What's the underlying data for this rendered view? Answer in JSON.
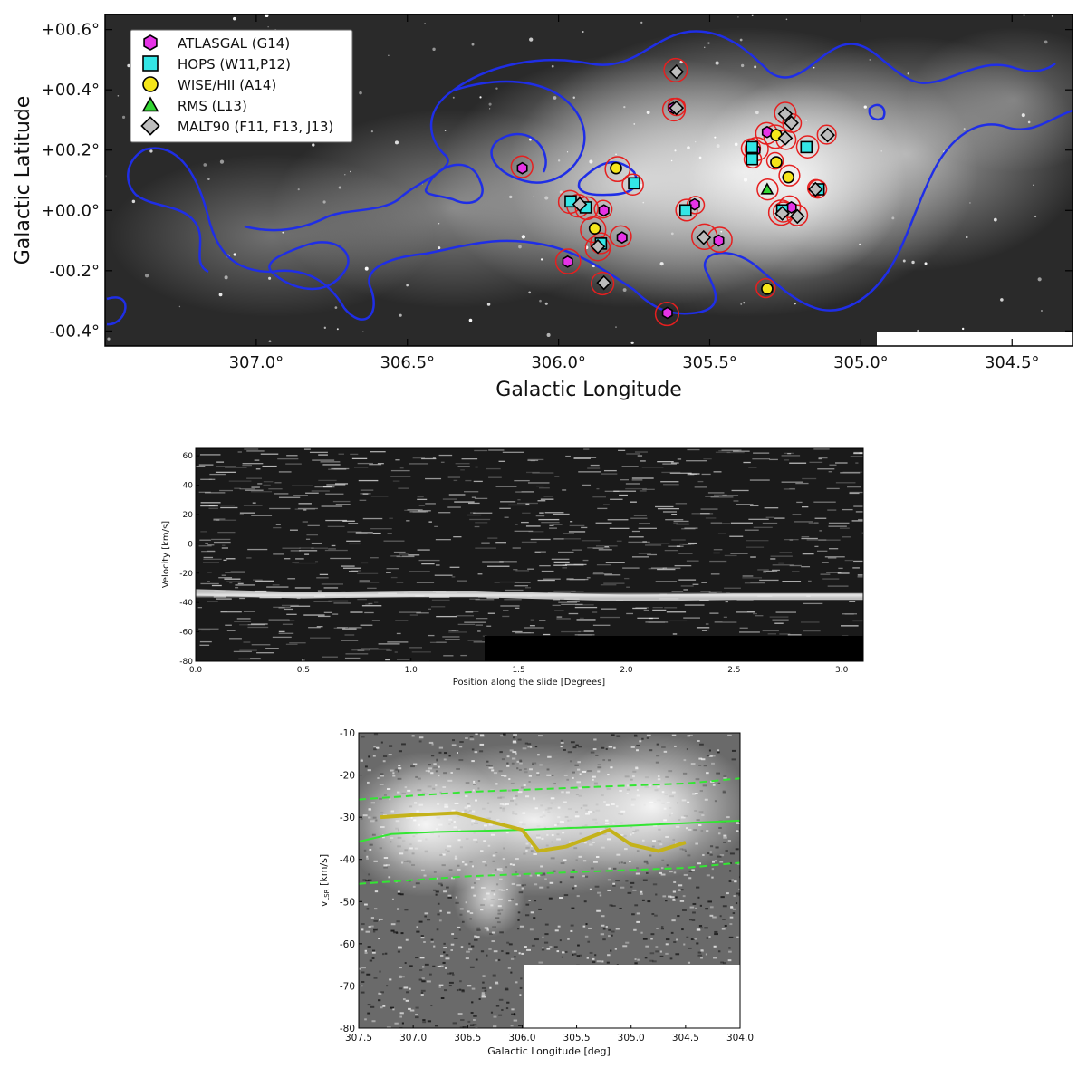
{
  "colors": {
    "atlasgal": "#e633e6",
    "hops": "#33e6e6",
    "wise": "#f5e61a",
    "rms": "#33d633",
    "malt90": "#bdbdbd",
    "contour_blue": "#1f2ee6",
    "contour_red": "#e61f1f",
    "lsr_fit": "#33e633",
    "velocity_track": "#c4b21a"
  },
  "chart_data": [
    {
      "type": "scatter",
      "xlabel": "Galactic Longitude",
      "ylabel": "Galactic Latitude",
      "xlim": [
        307.5,
        304.3
      ],
      "ylim": [
        -0.45,
        0.65
      ],
      "xticks": [
        {
          "v": 307.0,
          "label": "307.0°"
        },
        {
          "v": 306.5,
          "label": "306.5°"
        },
        {
          "v": 306.0,
          "label": "306.0°"
        },
        {
          "v": 305.5,
          "label": "305.5°"
        },
        {
          "v": 305.0,
          "label": "305.0°"
        },
        {
          "v": 304.5,
          "label": "304.5°"
        }
      ],
      "yticks": [
        {
          "v": 0.6,
          "label": "+00.6°"
        },
        {
          "v": 0.4,
          "label": "+00.4°"
        },
        {
          "v": 0.2,
          "label": "+00.2°"
        },
        {
          "v": 0.0,
          "label": "+00.0°"
        },
        {
          "v": -0.2,
          "label": "-00.2°"
        },
        {
          "v": -0.4,
          "label": "-00.4°"
        }
      ],
      "legend_position": "top-left",
      "series": [
        {
          "name": "ATLASGAL (G14)",
          "marker": "hexagon",
          "color": "#e633e6",
          "points": [
            [
              306.12,
              0.14
            ],
            [
              305.97,
              -0.17
            ],
            [
              305.79,
              -0.09
            ],
            [
              305.64,
              -0.34
            ],
            [
              305.55,
              0.02
            ],
            [
              305.47,
              -0.1
            ],
            [
              305.62,
              0.34
            ],
            [
              305.35,
              0.2
            ],
            [
              305.23,
              0.01
            ],
            [
              305.31,
              0.26
            ],
            [
              305.85,
              0.0
            ]
          ]
        },
        {
          "name": "HOPS (W11,P12)",
          "marker": "square",
          "color": "#33e6e6",
          "points": [
            [
              305.96,
              0.03
            ],
            [
              305.91,
              0.01
            ],
            [
              305.75,
              0.09
            ],
            [
              305.58,
              0.0
            ],
            [
              305.36,
              0.21
            ],
            [
              305.36,
              0.17
            ],
            [
              305.26,
              0.0
            ],
            [
              305.18,
              0.21
            ],
            [
              305.14,
              0.07
            ],
            [
              305.86,
              -0.11
            ]
          ]
        },
        {
          "name": "WISE/HII (A14)",
          "marker": "circle",
          "color": "#f5e61a",
          "points": [
            [
              305.81,
              0.14
            ],
            [
              305.88,
              -0.06
            ],
            [
              305.28,
              0.16
            ],
            [
              305.24,
              0.11
            ],
            [
              305.28,
              0.25
            ],
            [
              305.31,
              -0.26
            ]
          ]
        },
        {
          "name": "RMS (L13)",
          "marker": "triangle",
          "color": "#33d633",
          "points": [
            [
              305.31,
              0.07
            ]
          ]
        },
        {
          "name": "MALT90 (F11, F13, J13)",
          "marker": "diamond",
          "color": "#bdbdbd",
          "points": [
            [
              305.61,
              0.46
            ],
            [
              305.25,
              0.32
            ],
            [
              305.23,
              0.29
            ],
            [
              305.11,
              0.25
            ],
            [
              305.15,
              0.07
            ],
            [
              305.26,
              -0.01
            ],
            [
              305.21,
              -0.02
            ],
            [
              305.52,
              -0.09
            ],
            [
              305.87,
              -0.12
            ],
            [
              305.85,
              -0.24
            ],
            [
              305.93,
              0.02
            ],
            [
              305.25,
              0.24
            ],
            [
              305.61,
              0.34
            ]
          ]
        }
      ]
    },
    {
      "type": "heatmap",
      "xlabel": "Position along the slide [Degrees]",
      "ylabel": "Velocity [km/s]",
      "xlim": [
        0.0,
        3.1
      ],
      "ylim": [
        -80,
        65
      ],
      "xticks": [
        "0.0",
        "0.5",
        "1.0",
        "1.5",
        "2.0",
        "2.5",
        "3.0"
      ],
      "yticks": [
        "60",
        "40",
        "20",
        "0",
        "-20",
        "-40",
        "-60",
        "-80"
      ],
      "emission_track": [
        [
          0.0,
          -33
        ],
        [
          0.5,
          -35
        ],
        [
          1.0,
          -34
        ],
        [
          1.3,
          -34
        ],
        [
          1.5,
          -35
        ],
        [
          2.0,
          -37
        ],
        [
          2.5,
          -36
        ],
        [
          3.1,
          -36
        ]
      ]
    },
    {
      "type": "line",
      "xlabel": "Galactic Longitude [deg]",
      "ylabel": "v_LSR [km/s]",
      "xlim": [
        307.5,
        304.0
      ],
      "ylim": [
        -80,
        -10
      ],
      "xticks": [
        "307.5",
        "307.0",
        "306.5",
        "306.0",
        "305.5",
        "305.0",
        "304.5",
        "304.0"
      ],
      "yticks": [
        "-10",
        "-20",
        "-30",
        "-40",
        "-50",
        "-60",
        "-70",
        "-80"
      ],
      "series": [
        {
          "style": "solid",
          "color": "#33e633",
          "x": [
            307.5,
            307.2,
            306.8,
            306.0,
            305.0,
            304.0
          ],
          "y": [
            -35.8,
            -34.0,
            -33.5,
            -33.0,
            -32.0,
            -30.8
          ]
        },
        {
          "style": "dashed",
          "color": "#33e633",
          "x": [
            307.5,
            306.5,
            305.5,
            304.5,
            304.0
          ],
          "y": [
            -25.8,
            -24.0,
            -23.0,
            -22.0,
            -20.8
          ]
        },
        {
          "style": "dashed",
          "color": "#33e633",
          "x": [
            307.5,
            306.5,
            305.5,
            304.5,
            304.0
          ],
          "y": [
            -45.8,
            -44.0,
            -43.0,
            -42.0,
            -40.8
          ]
        },
        {
          "style": "thick",
          "color": "#c4b21a",
          "x": [
            307.3,
            307.0,
            306.6,
            306.0,
            305.85,
            305.6,
            305.2,
            305.0,
            304.75,
            304.5
          ],
          "y": [
            -30.0,
            -29.5,
            -29.0,
            -33.0,
            -38.0,
            -37.0,
            -33.0,
            -36.5,
            -38.0,
            -36.0
          ]
        }
      ]
    }
  ]
}
